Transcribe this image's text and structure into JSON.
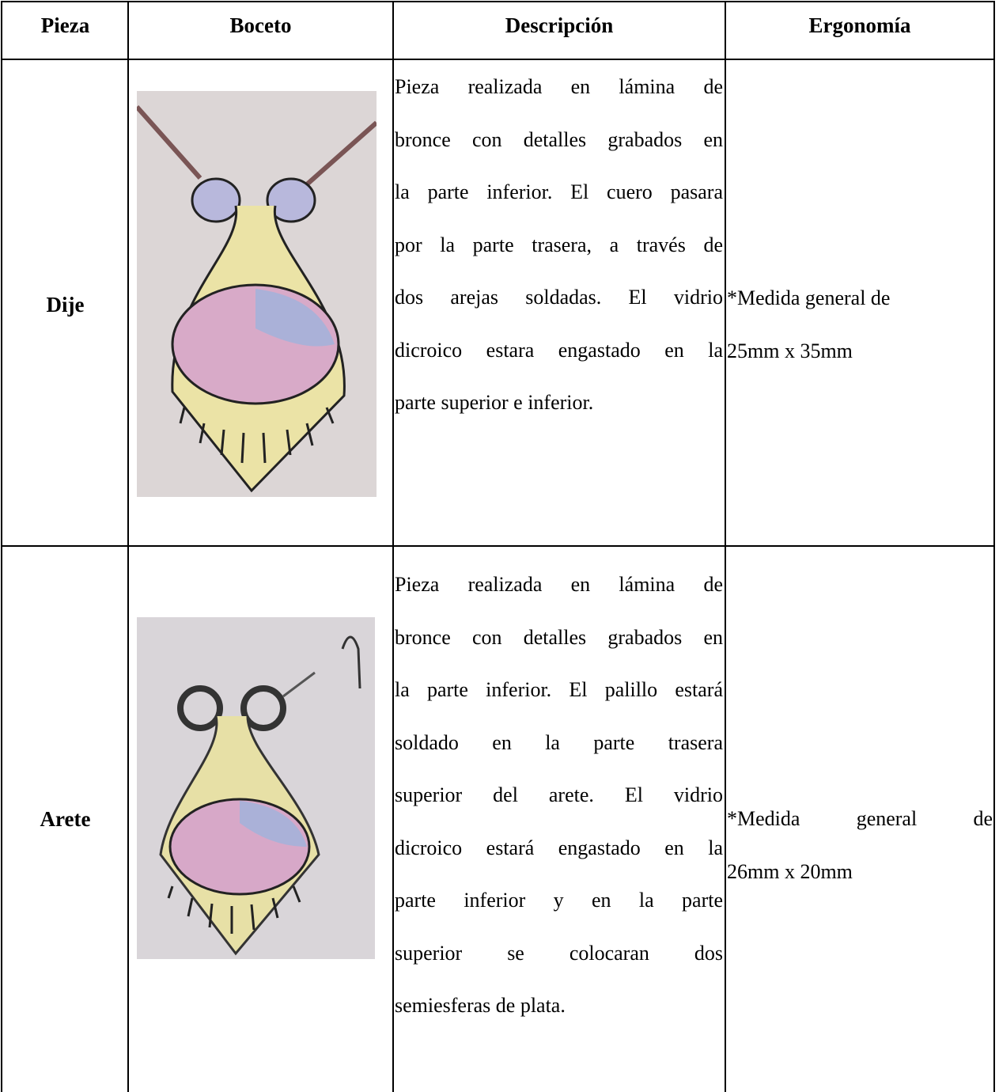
{
  "header": [
    "Pieza",
    "Boceto",
    "Descripción",
    "Ergonomía"
  ],
  "rows": [
    {
      "pieza": "Dije",
      "description": [
        "Pieza realizada en lámina de",
        "bronce con detalles grabados en",
        "la parte inferior. El cuero pasara",
        "por la parte trasera, a través de",
        "dos arejas soldadas. El vidrio",
        "dicroico estara engastado en la",
        "parte superior e inferior."
      ],
      "ergonomia": [
        "*Medida general de",
        "25mm x 35mm"
      ]
    },
    {
      "pieza": "Arete",
      "description": [
        "Pieza realizada en lámina de",
        "bronce con detalles grabados en",
        "la parte inferior. El palillo estará",
        "soldado en la parte trasera",
        "superior del arete. El vidrio",
        "dicroico estará engastado en la",
        "parte inferior y en la parte",
        "superior se colocaran dos",
        "semiesferas de plata."
      ],
      "ergonomia": [
        "*Medida general de",
        "26mm x 20mm"
      ]
    }
  ]
}
